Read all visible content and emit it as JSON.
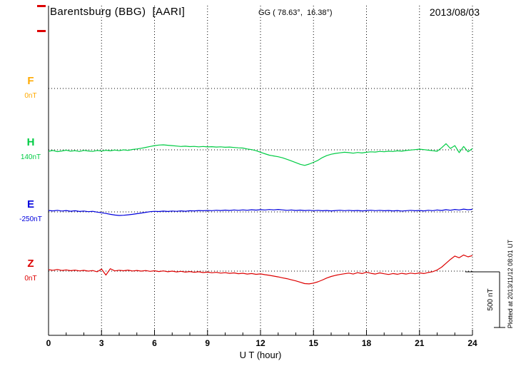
{
  "header": {
    "station_title": "Barentsburg (BBG)  [AARI]",
    "geo_coords": "GG ( 78.63°,  16.38°)",
    "date": "2013/08/03"
  },
  "side_notes": {
    "plotted_at": "Plotted at 2013/11/12 08:01 UT",
    "scale_label": "500 nT"
  },
  "axes": {
    "x_label": "U T (hour)",
    "x_ticks": [
      0,
      3,
      6,
      9,
      12,
      15,
      18,
      21,
      24
    ],
    "x_minor_step_hours": 1,
    "x_range_hours": [
      0,
      24
    ]
  },
  "components": [
    {
      "id": "F",
      "label": "F",
      "baseline_label": "0nT",
      "color": "#ffaa00"
    },
    {
      "id": "H",
      "label": "H",
      "baseline_label": "140nT",
      "color": "#00cc44"
    },
    {
      "id": "E",
      "label": "E",
      "baseline_label": "-250nT",
      "color": "#0000dd"
    },
    {
      "id": "Z",
      "label": "Z",
      "baseline_label": "0nT",
      "color": "#dd0000"
    }
  ],
  "chart_data": {
    "type": "line",
    "title": "Barentsburg (BBG) [AARI] magnetogram 2013/08/03",
    "xlabel": "U T (hour)",
    "x_range_hours": [
      0,
      24
    ],
    "x_start_hour": 0,
    "x_step_hours": 0.25,
    "scale_nT_per_division": 500,
    "grid": "dotted horizontal baselines and vertical lines every 3 hours",
    "series": [
      {
        "name": "F",
        "baseline": "0nT",
        "color": "#ffaa00",
        "values_nT": []
      },
      {
        "name": "H",
        "baseline": "140nT",
        "color": "#00cc44",
        "values_nT": [
          -13,
          -6,
          -16,
          -10,
          -3,
          -12,
          -8,
          -15,
          -5,
          -10,
          -14,
          -6,
          -11,
          -4,
          -9,
          -2,
          -8,
          0,
          -5,
          3,
          8,
          14,
          22,
          30,
          38,
          43,
          45,
          41,
          38,
          34,
          30,
          33,
          29,
          31,
          27,
          30,
          26,
          28,
          25,
          27,
          23,
          25,
          21,
          18,
          16,
          8,
          2,
          -8,
          -22,
          -35,
          -48,
          -55,
          -62,
          -72,
          -85,
          -100,
          -115,
          -130,
          -140,
          -128,
          -112,
          -95,
          -70,
          -52,
          -40,
          -32,
          -27,
          -22,
          -25,
          -30,
          -24,
          -28,
          -22,
          -18,
          -20,
          -14,
          -17,
          -12,
          -15,
          -9,
          -12,
          -6,
          -2,
          2,
          6,
          2,
          -3,
          -8,
          -13,
          18,
          55,
          12,
          38,
          -25,
          30,
          -18,
          12
        ]
      },
      {
        "name": "E",
        "baseline": "-250nT",
        "color": "#0000dd",
        "values_nT": [
          13,
          9,
          14,
          8,
          12,
          6,
          10,
          4,
          8,
          2,
          5,
          -2,
          -8,
          -14,
          -22,
          -28,
          -32,
          -30,
          -26,
          -22,
          -16,
          -10,
          -4,
          2,
          5,
          3,
          7,
          4,
          8,
          5,
          9,
          6,
          10,
          9,
          12,
          10,
          13,
          11,
          15,
          12,
          16,
          13,
          17,
          14,
          18,
          15,
          19,
          16,
          20,
          17,
          21,
          18,
          22,
          18,
          14,
          17,
          13,
          16,
          12,
          15,
          11,
          14,
          10,
          13,
          9,
          12,
          15,
          11,
          14,
          10,
          13,
          9,
          12,
          15,
          11,
          14,
          10,
          13,
          9,
          12,
          8,
          11,
          14,
          10,
          13,
          9,
          15,
          11,
          17,
          13,
          20,
          15,
          22,
          17,
          25,
          19,
          23
        ]
      },
      {
        "name": "Z",
        "baseline": "0nT",
        "color": "#dd0000",
        "values_nT": [
          13,
          8,
          15,
          6,
          11,
          4,
          9,
          2,
          7,
          0,
          5,
          -6,
          18,
          -35,
          22,
          2,
          8,
          3,
          9,
          1,
          6,
          0,
          5,
          -2,
          3,
          -4,
          2,
          -6,
          0,
          -7,
          -2,
          -9,
          -4,
          -10,
          -6,
          -13,
          -9,
          -15,
          -11,
          -18,
          -14,
          -20,
          -16,
          -23,
          -19,
          -26,
          -22,
          -29,
          -25,
          -32,
          -38,
          -45,
          -52,
          -60,
          -68,
          -78,
          -88,
          -100,
          -112,
          -115,
          -108,
          -96,
          -80,
          -62,
          -48,
          -38,
          -30,
          -24,
          -18,
          -26,
          -14,
          -22,
          -10,
          -20,
          -26,
          -16,
          -24,
          -30,
          -22,
          -28,
          -20,
          -26,
          -18,
          -24,
          -16,
          -22,
          -12,
          -5,
          10,
          35,
          70,
          105,
          135,
          120,
          145,
          128,
          140
        ]
      }
    ]
  }
}
